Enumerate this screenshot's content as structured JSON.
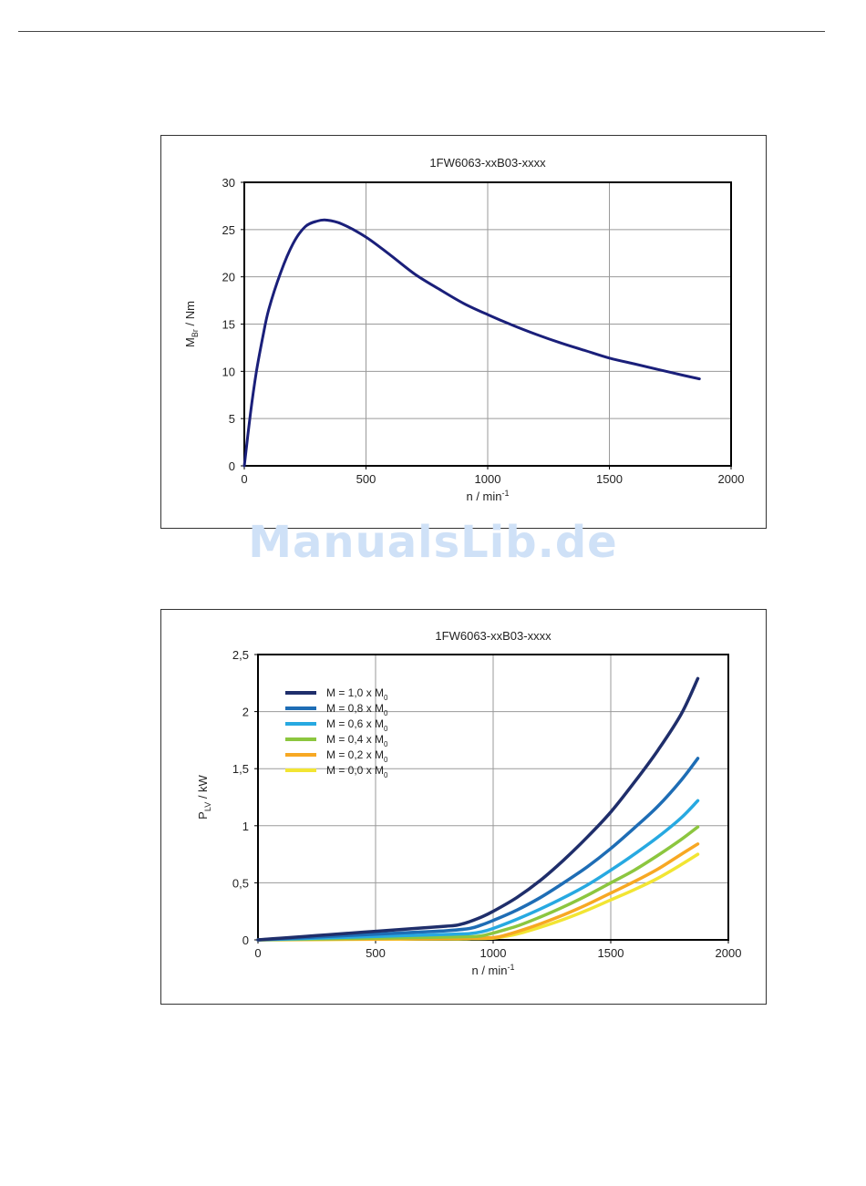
{
  "watermark": "ManualsLib.de",
  "chart_data": [
    {
      "type": "line",
      "title": "1FW6063-xxB03-xxxx",
      "xlabel": "n / min",
      "xlabel_sup": "-1",
      "ylabel": "M",
      "ylabel_sub": "Br",
      "ylabel_suffix": " / Nm",
      "xlim": [
        0,
        2000
      ],
      "ylim": [
        0,
        30
      ],
      "xticks": [
        0,
        500,
        1000,
        1500,
        2000
      ],
      "yticks": [
        0,
        5,
        10,
        15,
        20,
        25,
        30
      ],
      "xtick_labels": [
        "0",
        "500",
        "1000",
        "1500",
        "2000"
      ],
      "ytick_labels": [
        "0",
        "5",
        "10",
        "15",
        "20",
        "25",
        "30"
      ],
      "grid": true,
      "series": [
        {
          "color": "#1a1f7a",
          "x": [
            0,
            25,
            50,
            75,
            100,
            150,
            200,
            250,
            300,
            340,
            400,
            500,
            600,
            700,
            800,
            900,
            1000,
            1100,
            1200,
            1300,
            1400,
            1500,
            1600,
            1700,
            1800,
            1870
          ],
          "y": [
            0,
            5.5,
            10,
            13.5,
            16.5,
            20.5,
            23.5,
            25.3,
            25.9,
            26.0,
            25.6,
            24.2,
            22.3,
            20.3,
            18.7,
            17.2,
            16.0,
            14.9,
            13.9,
            13.0,
            12.2,
            11.4,
            10.8,
            10.2,
            9.6,
            9.2
          ]
        }
      ]
    },
    {
      "type": "line",
      "title": "1FW6063-xxB03-xxxx",
      "xlabel": "n / min",
      "xlabel_sup": "-1",
      "ylabel": "P",
      "ylabel_sub": "LV",
      "ylabel_suffix": " / kW",
      "xlim": [
        0,
        2000
      ],
      "ylim": [
        0,
        2.5
      ],
      "xticks": [
        0,
        500,
        1000,
        1500,
        2000
      ],
      "yticks": [
        0,
        0.5,
        1,
        1.5,
        2,
        2.5
      ],
      "xtick_labels": [
        "0",
        "500",
        "1000",
        "1500",
        "2000"
      ],
      "ytick_labels": [
        "0",
        "0,5",
        "1",
        "1,5",
        "2",
        "2,5"
      ],
      "grid": true,
      "legend": "top-left",
      "series": [
        {
          "name": "M = 1,0 x M",
          "name_sub": "0",
          "color": "#1f2e6b",
          "x": [
            0,
            100,
            200,
            300,
            400,
            500,
            600,
            700,
            800,
            850,
            900,
            950,
            1000,
            1100,
            1200,
            1300,
            1400,
            1500,
            1600,
            1700,
            1800,
            1870
          ],
          "y": [
            0,
            0.015,
            0.03,
            0.045,
            0.06,
            0.075,
            0.09,
            0.105,
            0.12,
            0.13,
            0.16,
            0.2,
            0.25,
            0.37,
            0.52,
            0.7,
            0.9,
            1.12,
            1.38,
            1.66,
            1.98,
            2.29
          ]
        },
        {
          "name": "M = 0,8 x M",
          "name_sub": "0",
          "color": "#1e6db5",
          "x": [
            0,
            100,
            200,
            300,
            400,
            500,
            600,
            700,
            800,
            900,
            950,
            1000,
            1100,
            1200,
            1300,
            1400,
            1500,
            1600,
            1700,
            1800,
            1870
          ],
          "y": [
            0,
            0.01,
            0.02,
            0.03,
            0.04,
            0.05,
            0.06,
            0.07,
            0.08,
            0.1,
            0.13,
            0.17,
            0.26,
            0.37,
            0.5,
            0.64,
            0.8,
            0.98,
            1.17,
            1.4,
            1.59
          ]
        },
        {
          "name": "M = 0,6 x M",
          "name_sub": "0",
          "color": "#27a9e1",
          "x": [
            0,
            100,
            200,
            300,
            400,
            500,
            600,
            700,
            800,
            900,
            950,
            1000,
            1100,
            1200,
            1300,
            1400,
            1500,
            1600,
            1700,
            1800,
            1870
          ],
          "y": [
            0,
            0.006,
            0.012,
            0.018,
            0.024,
            0.03,
            0.036,
            0.042,
            0.048,
            0.055,
            0.07,
            0.1,
            0.18,
            0.27,
            0.37,
            0.48,
            0.61,
            0.75,
            0.9,
            1.07,
            1.22
          ]
        },
        {
          "name": "M = 0,4 x M",
          "name_sub": "0",
          "color": "#8cc63f",
          "x": [
            0,
            200,
            400,
            600,
            800,
            900,
            950,
            1000,
            1100,
            1200,
            1300,
            1400,
            1500,
            1600,
            1700,
            1800,
            1870
          ],
          "y": [
            0,
            0.006,
            0.012,
            0.018,
            0.024,
            0.028,
            0.035,
            0.06,
            0.12,
            0.2,
            0.29,
            0.39,
            0.5,
            0.61,
            0.74,
            0.88,
            0.99
          ]
        },
        {
          "name": "M = 0,2 x M",
          "name_sub": "0",
          "color": "#f7a823",
          "x": [
            0,
            200,
            400,
            600,
            800,
            900,
            1000,
            1050,
            1100,
            1200,
            1300,
            1400,
            1500,
            1600,
            1700,
            1800,
            1870
          ],
          "y": [
            0,
            0.003,
            0.006,
            0.009,
            0.012,
            0.015,
            0.02,
            0.04,
            0.07,
            0.14,
            0.22,
            0.31,
            0.41,
            0.51,
            0.62,
            0.75,
            0.84
          ]
        },
        {
          "name": "M = 0,0 x M",
          "name_sub": "0",
          "color": "#f2e533",
          "x": [
            0,
            200,
            400,
            600,
            800,
            900,
            1000,
            1050,
            1100,
            1200,
            1300,
            1400,
            1500,
            1600,
            1700,
            1800,
            1870
          ],
          "y": [
            0,
            0.002,
            0.004,
            0.006,
            0.008,
            0.01,
            0.015,
            0.03,
            0.05,
            0.11,
            0.18,
            0.26,
            0.35,
            0.44,
            0.54,
            0.66,
            0.75
          ]
        }
      ]
    }
  ]
}
